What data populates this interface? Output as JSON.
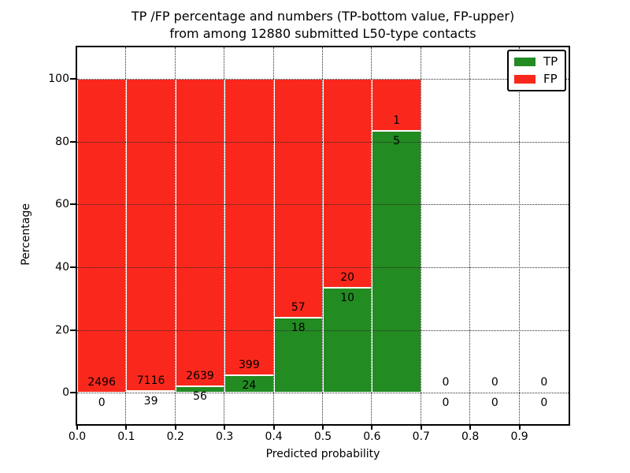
{
  "title": {
    "line1": "TP /FP percentage and numbers (TP-bottom value, FP-upper)",
    "line2": "from among 12880 submitted L50-type contacts"
  },
  "chart_data": {
    "type": "bar",
    "stacked": true,
    "title": "TP /FP percentage and numbers (TP-bottom value, FP-upper) from among 12880 submitted L50-type contacts",
    "xlabel": "Predicted probability",
    "ylabel": "Percentage",
    "xlim": [
      0.0,
      1.0
    ],
    "ylim": [
      -10,
      110
    ],
    "xticks": [
      "0.0",
      "0.1",
      "0.2",
      "0.3",
      "0.4",
      "0.5",
      "0.6",
      "0.7",
      "0.8",
      "0.9"
    ],
    "yticks": [
      0,
      20,
      40,
      60,
      80,
      100
    ],
    "grid": true,
    "annotation_note": "TP count shown below TP/FP boundary, FP count shown above it",
    "legend": {
      "position": "upper right",
      "entries": [
        {
          "label": "TP",
          "color": "#228b22"
        },
        {
          "label": "FP",
          "color": "#fa281c"
        }
      ]
    },
    "total_submitted": 12880,
    "bins": [
      {
        "range": [
          0.0,
          0.1
        ],
        "tp": 0,
        "fp": 2496
      },
      {
        "range": [
          0.1,
          0.2
        ],
        "tp": 39,
        "fp": 7116
      },
      {
        "range": [
          0.2,
          0.3
        ],
        "tp": 56,
        "fp": 2639
      },
      {
        "range": [
          0.3,
          0.4
        ],
        "tp": 24,
        "fp": 399
      },
      {
        "range": [
          0.4,
          0.5
        ],
        "tp": 18,
        "fp": 57
      },
      {
        "range": [
          0.5,
          0.6
        ],
        "tp": 10,
        "fp": 20
      },
      {
        "range": [
          0.6,
          0.7
        ],
        "tp": 5,
        "fp": 1
      },
      {
        "range": [
          0.7,
          0.8
        ],
        "tp": 0,
        "fp": 0
      },
      {
        "range": [
          0.8,
          0.9
        ],
        "tp": 0,
        "fp": 0
      },
      {
        "range": [
          0.9,
          1.0
        ],
        "tp": 0,
        "fp": 0
      }
    ]
  },
  "colors": {
    "tp": "#228b22",
    "fp": "#fa281c",
    "grid": "#2b2b2b",
    "text": "#000000",
    "background": "#ffffff"
  }
}
